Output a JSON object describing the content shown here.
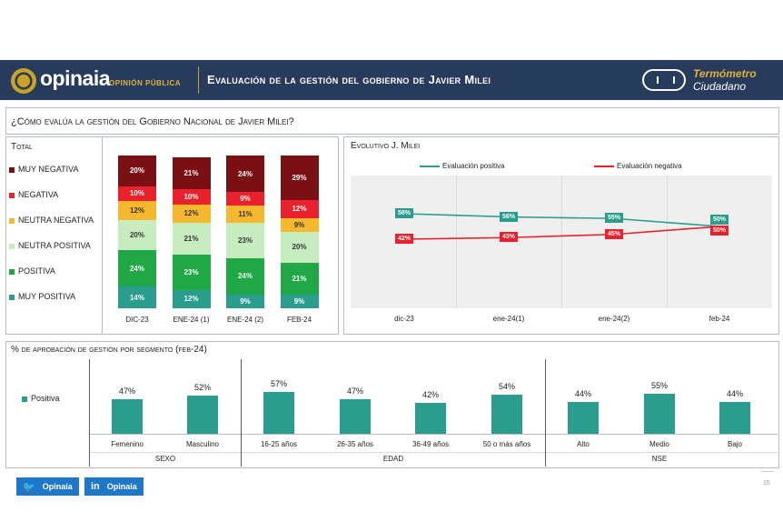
{
  "header": {
    "logo_text": "opinaia",
    "logo_sub": "OPINIÓN PÚBLICA",
    "title": "Evaluación de la gestión del gobierno de Javier Milei",
    "thermo_line1": "Termómetro",
    "thermo_line2": "Ciudadano",
    "background": "#273b5c",
    "accent": "#c9a227"
  },
  "question": "¿Cómo evalúa la gestión del Gobierno Nacional de Javier Milei?",
  "chart_data": [
    {
      "type": "bar",
      "title": "Total",
      "categories": [
        "DIC-23",
        "ENE-24 (1)",
        "ENE-24 (2)",
        "FEB-24"
      ],
      "series": [
        {
          "name": "MUY POSITIVA",
          "color": "#2a9d8f",
          "values": [
            14,
            12,
            9,
            9
          ]
        },
        {
          "name": "POSITIVA",
          "color": "#1fa845",
          "values": [
            24,
            23,
            24,
            21
          ]
        },
        {
          "name": "NEUTRA POSITIVA",
          "color": "#c6ecc0",
          "values": [
            20,
            21,
            23,
            20
          ]
        },
        {
          "name": "NEUTRA NEGATIVA",
          "color": "#f5b82e",
          "values": [
            12,
            12,
            11,
            9
          ]
        },
        {
          "name": "NEGATIVA",
          "color": "#e8212c",
          "values": [
            10,
            10,
            9,
            12
          ]
        },
        {
          "name": "MUY NEGATIVA",
          "color": "#7a0f14",
          "values": [
            20,
            21,
            24,
            29
          ]
        }
      ],
      "legend": [
        "MUY NEGATIVA",
        "NEGATIVA",
        "NEUTRA NEGATIVA",
        "NEUTRA POSITIVA",
        "POSITIVA",
        "MUY POSITIVA"
      ],
      "stacked": true
    },
    {
      "type": "line",
      "title": "Evolutivo J. Milei",
      "x": [
        "dic-23",
        "ene-24(1)",
        "ene-24(2)",
        "feb-24"
      ],
      "series": [
        {
          "name": "Evaluación positiva",
          "color": "#2a9d8f",
          "values": [
            58,
            56,
            55,
            50
          ]
        },
        {
          "name": "Evaluación negativa",
          "color": "#e8212c",
          "values": [
            42,
            43,
            45,
            50
          ]
        }
      ],
      "legend_position": "top",
      "grid": true
    },
    {
      "type": "bar",
      "title": "% de aprobación de gestión por segmento (feb-24)",
      "legend": [
        "Positiva"
      ],
      "color": "#2a9d8f",
      "categories": [
        "Femenino",
        "Masculino",
        "16-25 años",
        "26-35 años",
        "36-49 años",
        "50 o más años",
        "Alto",
        "Medio",
        "Bajo"
      ],
      "values": [
        47,
        52,
        57,
        47,
        42,
        54,
        44,
        55,
        44
      ],
      "groups": [
        {
          "name": "SEXO",
          "count": 2
        },
        {
          "name": "EDAD",
          "count": 4
        },
        {
          "name": "NSE",
          "count": 3
        }
      ]
    }
  ],
  "footer": {
    "twitter": "Opinaia",
    "linkedin": "Opinaia",
    "page": "15"
  }
}
